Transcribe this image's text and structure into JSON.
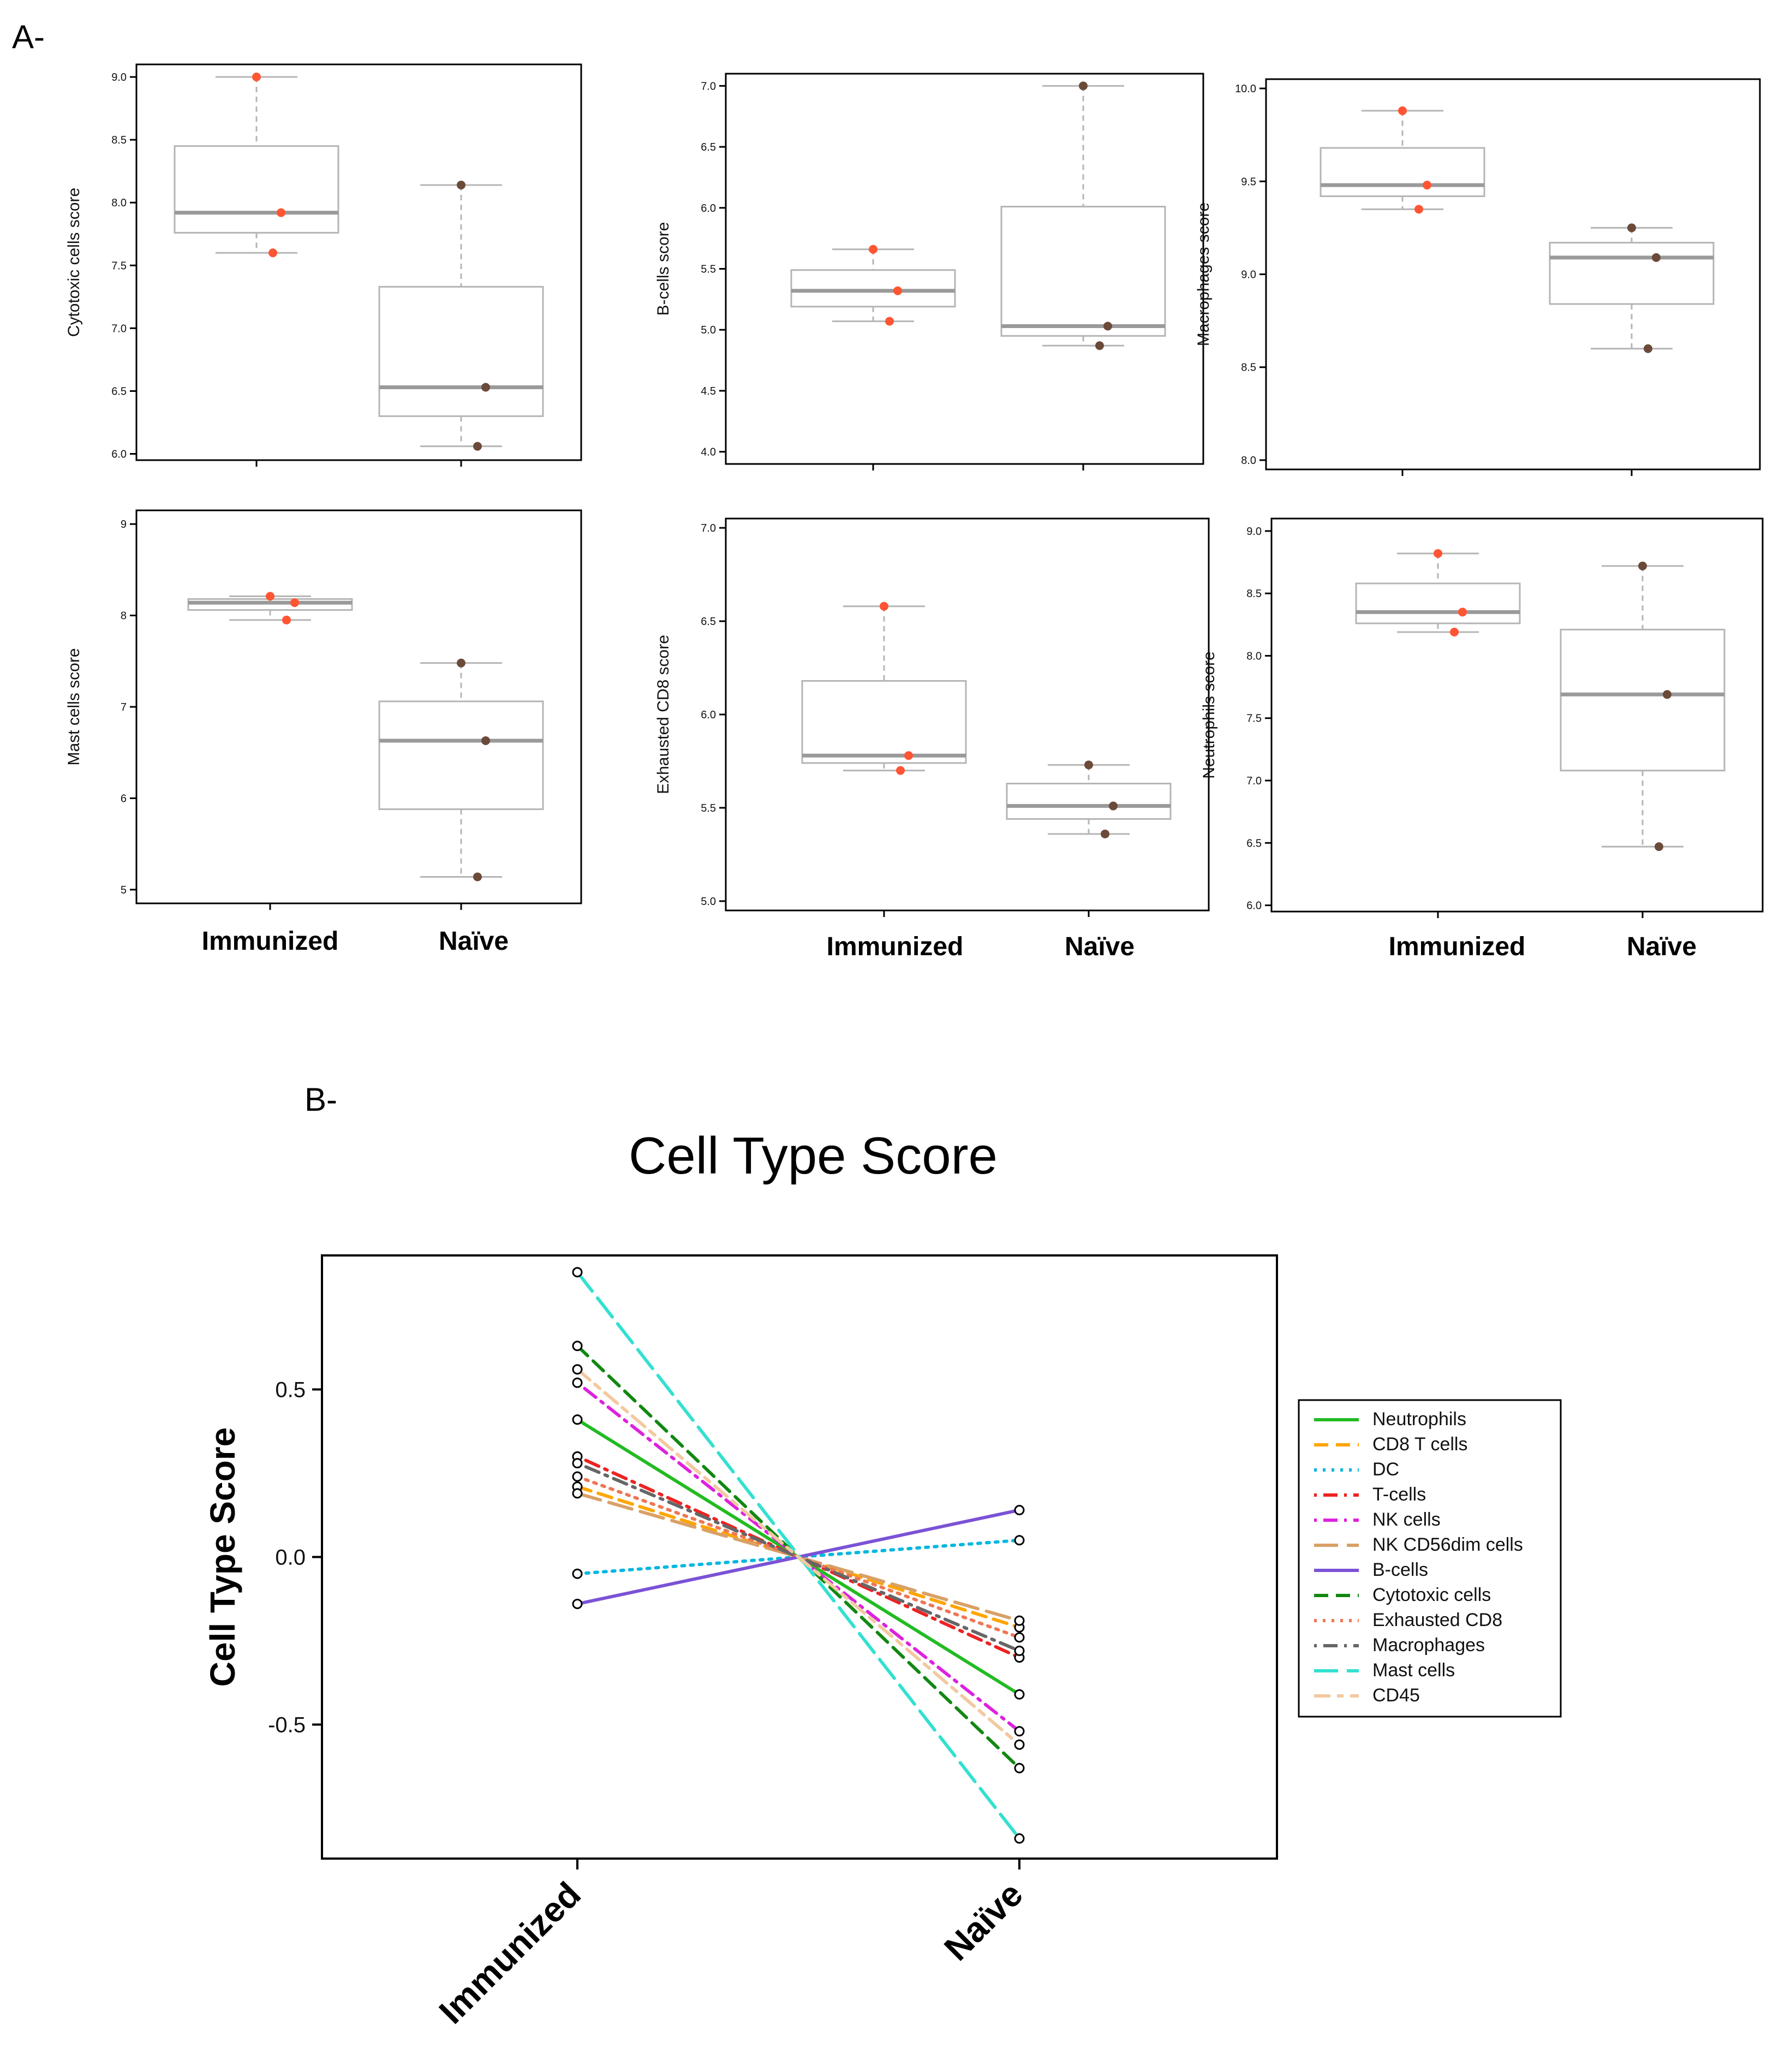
{
  "panel_labels": {
    "a": "A-",
    "b": "B-"
  },
  "colors": {
    "immunized_point": "#ff5533",
    "naive_point": "#6b4a3a",
    "box_stroke": "#b5b5b5",
    "median": "#9a9a9a"
  },
  "chart_data": [
    {
      "type": "box",
      "id": "cytotoxic",
      "ylabel": "Cytotoxic cells score",
      "categories": [
        "Immunized",
        "Naïve"
      ],
      "ylim": [
        5.95,
        9.1
      ],
      "yticks": [
        "6.0",
        "6.5",
        "7.0",
        "7.5",
        "8.0",
        "8.5",
        "9.0"
      ],
      "boxes": [
        {
          "q1": 7.76,
          "median": 7.92,
          "q3": 8.45,
          "min": 7.6,
          "max": 9.0,
          "points": [
            9.0,
            7.92,
            7.6
          ]
        },
        {
          "q1": 6.3,
          "median": 6.53,
          "q3": 7.33,
          "min": 6.06,
          "max": 8.14,
          "points": [
            8.14,
            6.53,
            6.06
          ]
        }
      ]
    },
    {
      "type": "box",
      "id": "bcells",
      "ylabel": "B-cells score",
      "categories": [
        "Immunized",
        "Naïve"
      ],
      "ylim": [
        3.9,
        7.1
      ],
      "yticks": [
        "4.0",
        "4.5",
        "5.0",
        "5.5",
        "6.0",
        "6.5",
        "7.0"
      ],
      "boxes": [
        {
          "q1": 5.19,
          "median": 5.32,
          "q3": 5.49,
          "min": 5.07,
          "max": 5.66,
          "points": [
            5.66,
            5.32,
            5.07
          ]
        },
        {
          "q1": 4.95,
          "median": 5.03,
          "q3": 6.01,
          "min": 4.87,
          "max": 7.0,
          "points": [
            7.0,
            5.03,
            4.87
          ]
        }
      ]
    },
    {
      "type": "box",
      "id": "macrophages",
      "ylabel": "Macrophages score",
      "categories": [
        "Immunized",
        "Naïve"
      ],
      "ylim": [
        7.95,
        10.05
      ],
      "yticks": [
        "8.0",
        "8.5",
        "9.0",
        "9.5",
        "10.0"
      ],
      "boxes": [
        {
          "q1": 9.42,
          "median": 9.48,
          "q3": 9.68,
          "min": 9.35,
          "max": 9.88,
          "points": [
            9.88,
            9.48,
            9.35
          ]
        },
        {
          "q1": 8.84,
          "median": 9.09,
          "q3": 9.17,
          "min": 8.6,
          "max": 9.25,
          "points": [
            9.25,
            9.09,
            8.6
          ]
        }
      ]
    },
    {
      "type": "box",
      "id": "mast",
      "ylabel": "Mast cells score",
      "categories": [
        "Immunized",
        "Naïve"
      ],
      "ylim": [
        4.85,
        9.15
      ],
      "yticks": [
        "5",
        "6",
        "7",
        "8",
        "9"
      ],
      "boxes": [
        {
          "q1": 8.06,
          "median": 8.14,
          "q3": 8.18,
          "min": 7.95,
          "max": 8.21,
          "points": [
            8.21,
            8.14,
            7.95
          ]
        },
        {
          "q1": 5.88,
          "median": 6.63,
          "q3": 7.06,
          "min": 5.14,
          "max": 7.48,
          "points": [
            7.48,
            6.63,
            5.14
          ]
        }
      ]
    },
    {
      "type": "box",
      "id": "exhausted",
      "ylabel": "Exhausted CD8 score",
      "categories": [
        "Immunized",
        "Naïve"
      ],
      "ylim": [
        4.95,
        7.05
      ],
      "yticks": [
        "5.0",
        "5.5",
        "6.0",
        "6.5",
        "7.0"
      ],
      "boxes": [
        {
          "q1": 5.74,
          "median": 5.78,
          "q3": 6.18,
          "min": 5.7,
          "max": 6.58,
          "points": [
            6.58,
            5.78,
            5.7
          ]
        },
        {
          "q1": 5.44,
          "median": 5.51,
          "q3": 5.63,
          "min": 5.36,
          "max": 5.73,
          "points": [
            5.73,
            5.51,
            5.36
          ]
        }
      ]
    },
    {
      "type": "box",
      "id": "neutrophils",
      "ylabel": "Neutrophils score",
      "categories": [
        "Immunized",
        "Naïve"
      ],
      "ylim": [
        5.95,
        9.1
      ],
      "yticks": [
        "6.0",
        "6.5",
        "7.0",
        "7.5",
        "8.0",
        "8.5",
        "9.0"
      ],
      "boxes": [
        {
          "q1": 8.26,
          "median": 8.35,
          "q3": 8.58,
          "min": 8.19,
          "max": 8.82,
          "points": [
            8.82,
            8.35,
            8.19
          ]
        },
        {
          "q1": 7.08,
          "median": 7.69,
          "q3": 8.21,
          "min": 6.47,
          "max": 8.72,
          "points": [
            8.72,
            7.69,
            6.47
          ]
        }
      ]
    },
    {
      "type": "line",
      "id": "celltype",
      "title": "Cell Type Score",
      "ylabel": "Cell Type Score",
      "categories": [
        "Immunized",
        "Naïve"
      ],
      "ylim": [
        -0.9,
        0.9
      ],
      "yticks": [
        "-0.5",
        "0.0",
        "0.5"
      ],
      "series": [
        {
          "name": "Neutrophils",
          "values": [
            0.41,
            -0.41
          ],
          "color": "#22bb22",
          "dash": "solid"
        },
        {
          "name": "CD8 T cells",
          "values": [
            0.21,
            -0.21
          ],
          "color": "#ffa500",
          "dash": "dashed"
        },
        {
          "name": "DC",
          "values": [
            -0.05,
            0.05
          ],
          "color": "#00b7e0",
          "dash": "dotted"
        },
        {
          "name": "T-cells",
          "values": [
            0.3,
            -0.3
          ],
          "color": "#ee2222",
          "dash": "dotdash"
        },
        {
          "name": "NK cells",
          "values": [
            0.52,
            -0.52
          ],
          "color": "#dd22dd",
          "dash": "dotdash"
        },
        {
          "name": "NK CD56dim cells",
          "values": [
            0.19,
            -0.19
          ],
          "color": "#d9a066",
          "dash": "longdash"
        },
        {
          "name": "B-cells",
          "values": [
            -0.14,
            0.14
          ],
          "color": "#7b52d6",
          "dash": "solid"
        },
        {
          "name": "Cytotoxic cells",
          "values": [
            0.63,
            -0.63
          ],
          "color": "#118811",
          "dash": "dashed"
        },
        {
          "name": "Exhausted CD8",
          "values": [
            0.24,
            -0.24
          ],
          "color": "#ee7755",
          "dash": "dotted"
        },
        {
          "name": "Macrophages",
          "values": [
            0.28,
            -0.28
          ],
          "color": "#666666",
          "dash": "dotdash"
        },
        {
          "name": "Mast cells",
          "values": [
            0.85,
            -0.84
          ],
          "color": "#33e0d0",
          "dash": "longdash"
        },
        {
          "name": "CD45",
          "values": [
            0.56,
            -0.56
          ],
          "color": "#f2c9a0",
          "dash": "twodash"
        }
      ]
    }
  ]
}
